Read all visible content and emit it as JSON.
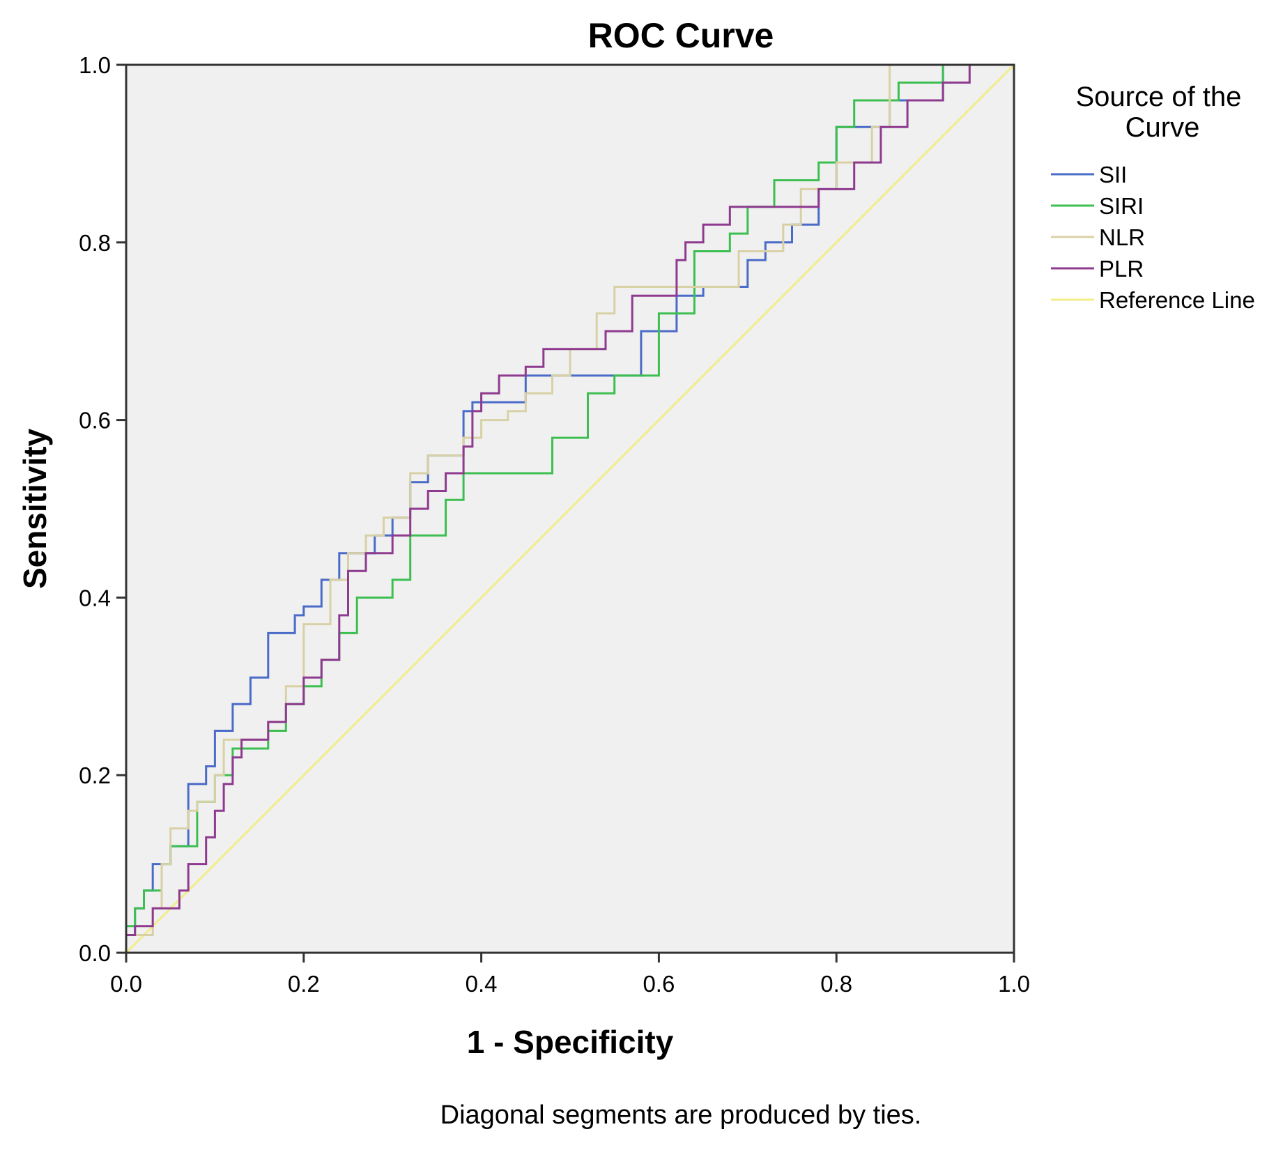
{
  "chart_data": {
    "type": "line",
    "title": "ROC Curve",
    "xlabel": "1 - Specificity",
    "ylabel": "Sensitivity",
    "xlim": [
      0,
      1
    ],
    "ylim": [
      0,
      1
    ],
    "xticks": [
      "0.0",
      "0.2",
      "0.4",
      "0.6",
      "0.8",
      "1.0"
    ],
    "yticks": [
      "0.0",
      "0.2",
      "0.4",
      "0.6",
      "0.8",
      "1.0"
    ],
    "grid": false,
    "legend": {
      "title": "Source of the Curve",
      "placement": "right"
    },
    "footnote": "Diagonal segments are produced by ties.",
    "series": [
      {
        "name": "SII",
        "color": "#4a6bc7",
        "step": true,
        "x": [
          0,
          0.01,
          0.02,
          0.03,
          0.05,
          0.06,
          0.07,
          0.09,
          0.1,
          0.12,
          0.14,
          0.16,
          0.19,
          0.2,
          0.22,
          0.24,
          0.26,
          0.28,
          0.3,
          0.32,
          0.34,
          0.36,
          0.38,
          0.39,
          0.45,
          0.5,
          0.58,
          0.62,
          0.65,
          0.7,
          0.72,
          0.75,
          0.78,
          0.8,
          0.82,
          0.86,
          0.92,
          0.95,
          1.0
        ],
        "y": [
          0,
          0.02,
          0.05,
          0.07,
          0.1,
          0.12,
          0.12,
          0.19,
          0.21,
          0.25,
          0.28,
          0.31,
          0.36,
          0.38,
          0.39,
          0.42,
          0.45,
          0.45,
          0.47,
          0.49,
          0.53,
          0.56,
          0.56,
          0.61,
          0.62,
          0.65,
          0.65,
          0.7,
          0.74,
          0.75,
          0.78,
          0.8,
          0.82,
          0.86,
          0.93,
          0.93,
          0.96,
          1.0,
          1.0
        ]
      },
      {
        "name": "SIRI",
        "color": "#3cbf50",
        "step": true,
        "x": [
          0,
          0.01,
          0.02,
          0.04,
          0.05,
          0.07,
          0.08,
          0.1,
          0.12,
          0.14,
          0.16,
          0.18,
          0.2,
          0.22,
          0.24,
          0.26,
          0.28,
          0.3,
          0.32,
          0.34,
          0.36,
          0.38,
          0.39,
          0.48,
          0.52,
          0.55,
          0.6,
          0.64,
          0.68,
          0.7,
          0.73,
          0.78,
          0.8,
          0.82,
          0.84,
          0.87,
          0.92,
          0.96,
          1.0
        ],
        "y": [
          0,
          0.03,
          0.05,
          0.07,
          0.1,
          0.12,
          0.12,
          0.17,
          0.2,
          0.23,
          0.23,
          0.25,
          0.28,
          0.3,
          0.33,
          0.36,
          0.4,
          0.4,
          0.42,
          0.47,
          0.47,
          0.51,
          0.54,
          0.54,
          0.58,
          0.63,
          0.65,
          0.72,
          0.79,
          0.81,
          0.84,
          0.87,
          0.89,
          0.93,
          0.96,
          0.96,
          0.98,
          1.0,
          1.0
        ]
      },
      {
        "name": "NLR",
        "color": "#d9d1a6",
        "step": true,
        "x": [
          0,
          0.03,
          0.04,
          0.05,
          0.07,
          0.08,
          0.1,
          0.11,
          0.13,
          0.16,
          0.18,
          0.2,
          0.23,
          0.25,
          0.27,
          0.29,
          0.32,
          0.34,
          0.36,
          0.38,
          0.4,
          0.43,
          0.45,
          0.48,
          0.5,
          0.53,
          0.55,
          0.62,
          0.65,
          0.69,
          0.74,
          0.76,
          0.8,
          0.84,
          0.86,
          0.89,
          0.92,
          0.96,
          1.0
        ],
        "y": [
          0,
          0.02,
          0.05,
          0.1,
          0.14,
          0.16,
          0.17,
          0.2,
          0.24,
          0.24,
          0.26,
          0.3,
          0.37,
          0.42,
          0.45,
          0.47,
          0.49,
          0.54,
          0.56,
          0.56,
          0.58,
          0.6,
          0.61,
          0.63,
          0.65,
          0.68,
          0.72,
          0.75,
          0.75,
          0.75,
          0.79,
          0.82,
          0.86,
          0.89,
          0.93,
          1.0,
          1.0,
          1.0,
          1.0
        ]
      },
      {
        "name": "PLR",
        "color": "#8e3a8f",
        "step": true,
        "x": [
          0,
          0.01,
          0.03,
          0.06,
          0.07,
          0.09,
          0.1,
          0.11,
          0.12,
          0.13,
          0.16,
          0.18,
          0.2,
          0.22,
          0.24,
          0.25,
          0.27,
          0.3,
          0.32,
          0.34,
          0.36,
          0.38,
          0.39,
          0.4,
          0.42,
          0.45,
          0.47,
          0.5,
          0.54,
          0.57,
          0.62,
          0.63,
          0.65,
          0.68,
          0.74,
          0.78,
          0.82,
          0.85,
          0.88,
          0.92,
          0.95,
          1.0
        ],
        "y": [
          0,
          0.02,
          0.03,
          0.05,
          0.07,
          0.1,
          0.13,
          0.16,
          0.19,
          0.22,
          0.24,
          0.26,
          0.28,
          0.31,
          0.33,
          0.38,
          0.43,
          0.45,
          0.47,
          0.5,
          0.52,
          0.54,
          0.57,
          0.61,
          0.63,
          0.65,
          0.66,
          0.68,
          0.68,
          0.7,
          0.74,
          0.78,
          0.8,
          0.82,
          0.84,
          0.84,
          0.86,
          0.89,
          0.93,
          0.96,
          0.98,
          1.0
        ]
      }
    ],
    "reference_line": {
      "name": "Reference Line",
      "color": "#f2ec8a",
      "x": [
        0,
        1
      ],
      "y": [
        0,
        1
      ]
    }
  }
}
